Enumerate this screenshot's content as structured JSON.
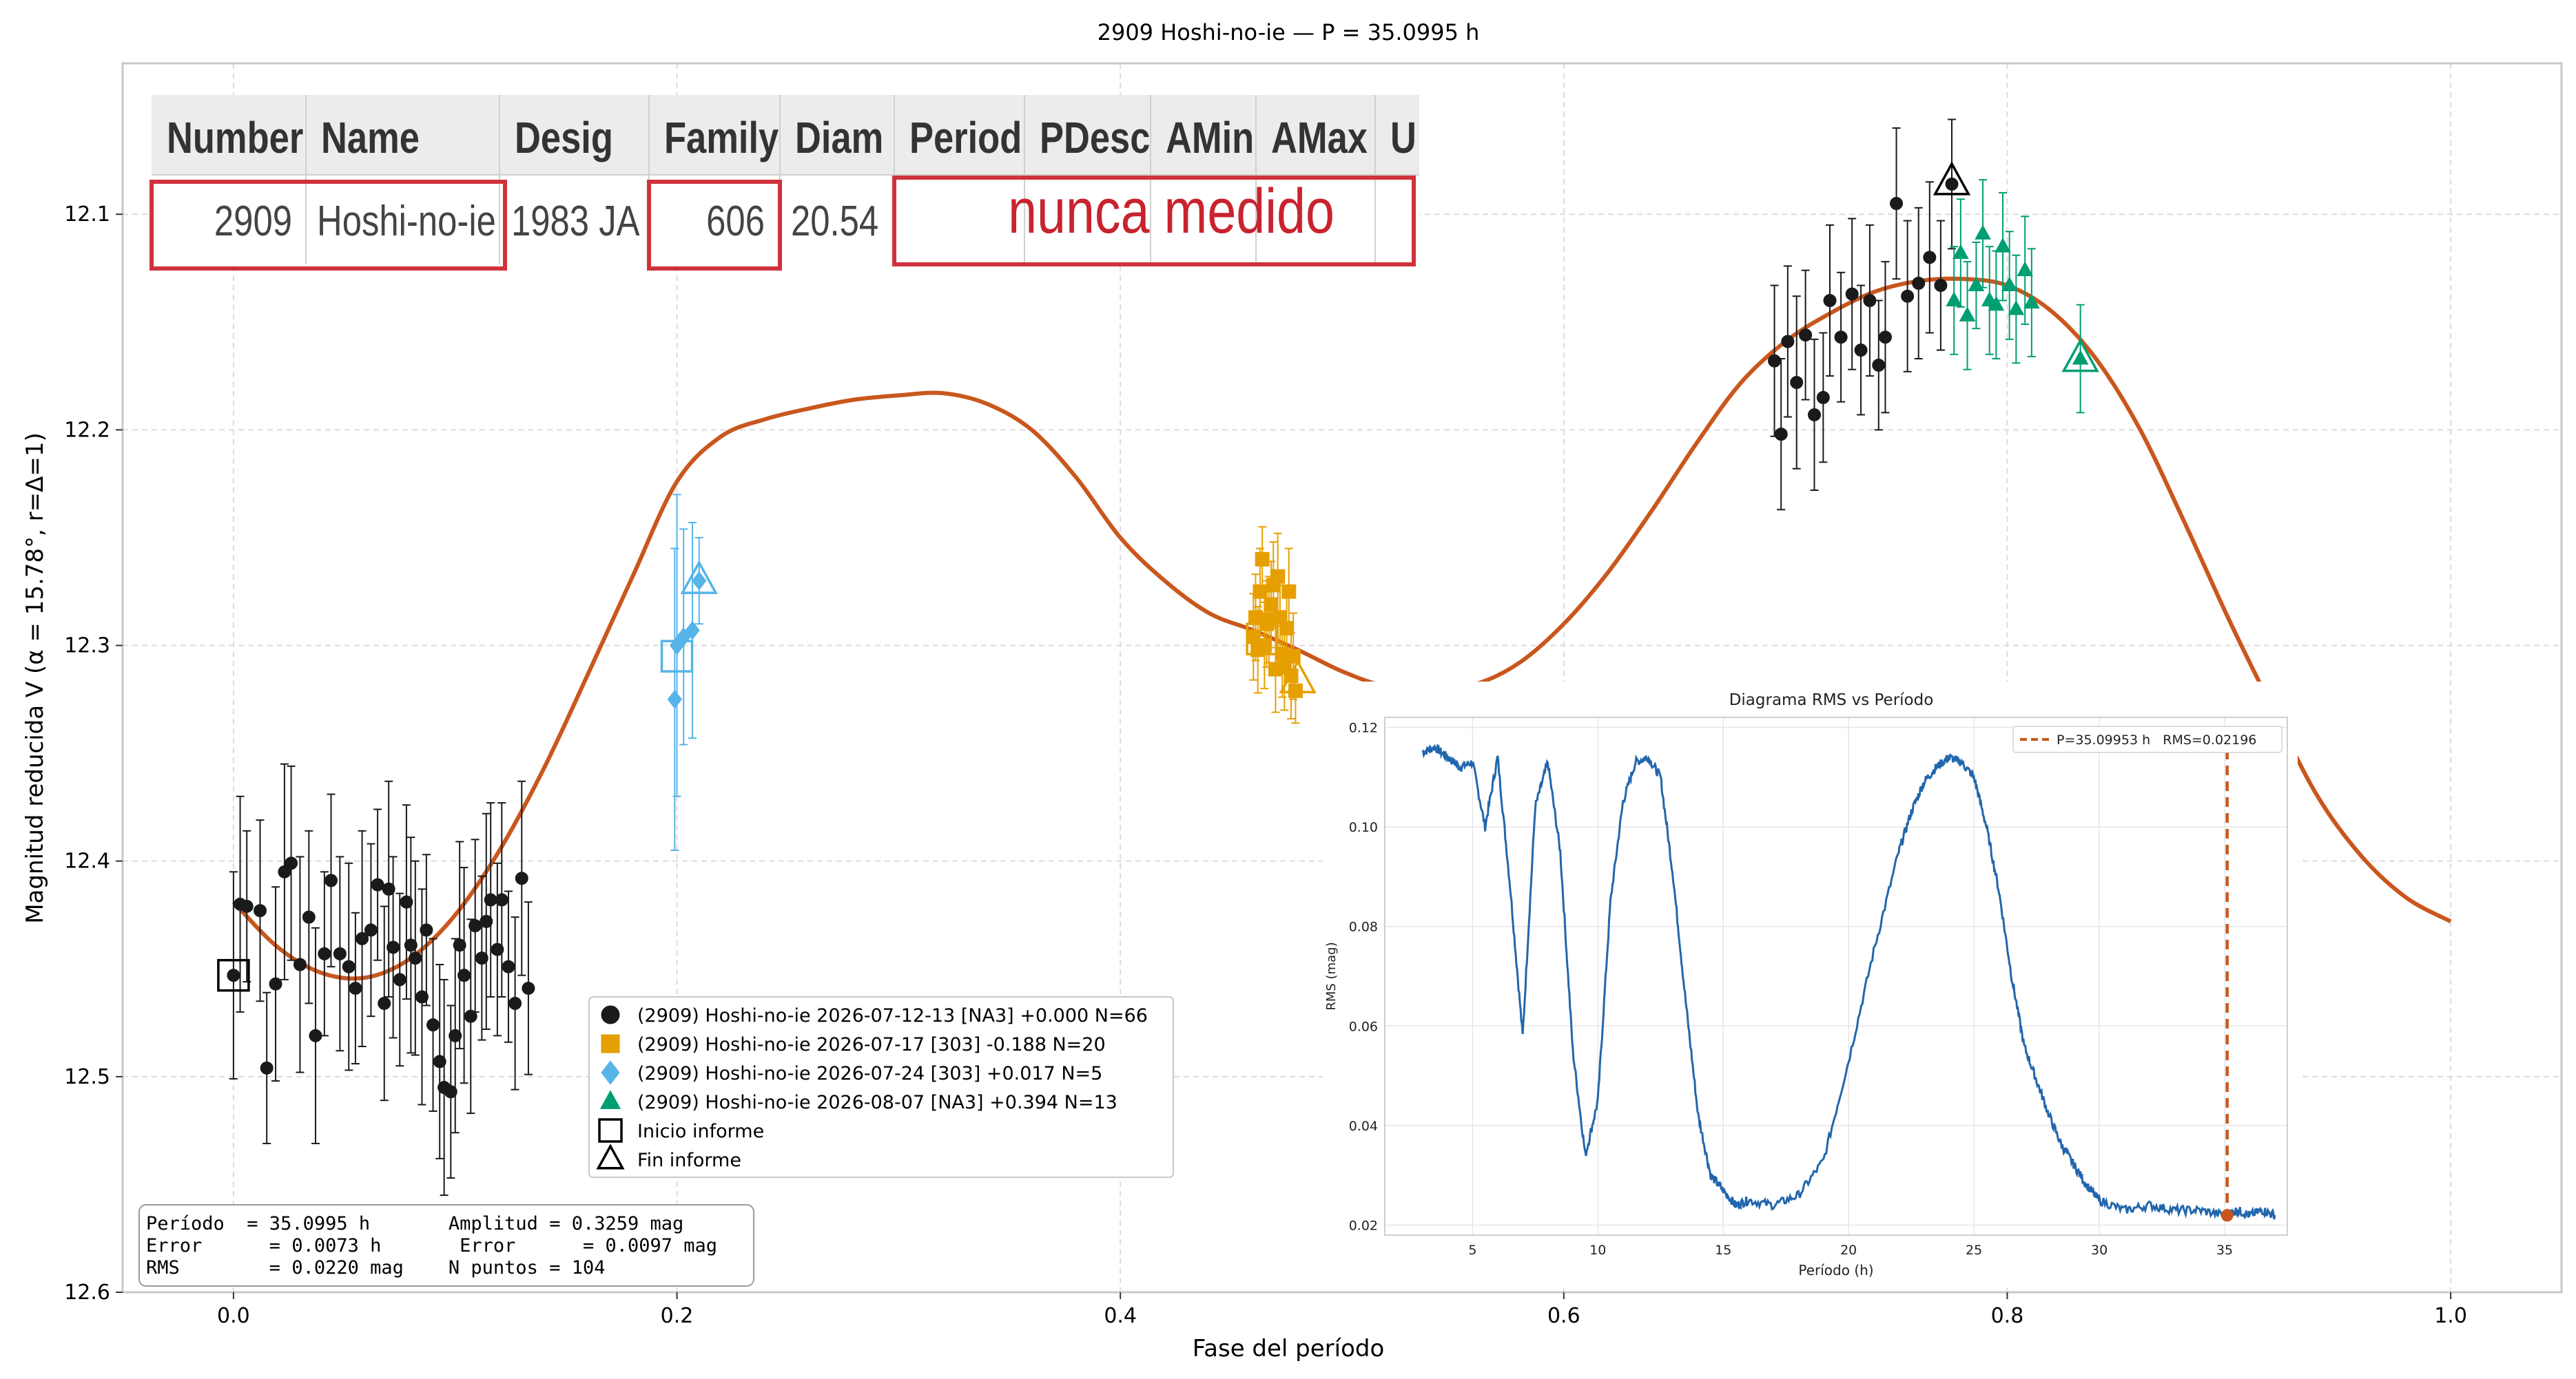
{
  "chart_data": [
    {
      "type": "scatter",
      "title": "2909 Hoshi-no-ie — P = 35.0995 h",
      "xlabel": "Fase del período",
      "ylabel": "Magnitud reducida V  (α = 15.78°, r=Δ=1)",
      "xlim": [
        -0.05,
        1.05
      ],
      "ylim": [
        12.6,
        12.03
      ],
      "y_inverted": true,
      "x_ticks": [
        "0.0",
        "0.2",
        "0.4",
        "0.6",
        "0.8",
        "1.0"
      ],
      "x_tick_values": [
        0.0,
        0.2,
        0.4,
        0.6,
        0.8,
        1.0
      ],
      "y_ticks": [
        "12.1",
        "12.2",
        "12.3",
        "12.4",
        "12.5",
        "12.6"
      ],
      "y_tick_values": [
        12.1,
        12.2,
        12.3,
        12.4,
        12.5,
        12.6
      ],
      "grid": true,
      "legend_position": "lower-center",
      "fit_curve": {
        "color": "#c9571d",
        "x": [
          0.0,
          0.02,
          0.04,
          0.06,
          0.08,
          0.1,
          0.12,
          0.14,
          0.16,
          0.18,
          0.2,
          0.22,
          0.24,
          0.26,
          0.28,
          0.3,
          0.32,
          0.34,
          0.36,
          0.38,
          0.4,
          0.42,
          0.44,
          0.46,
          0.48,
          0.5,
          0.52,
          0.54,
          0.56,
          0.58,
          0.6,
          0.62,
          0.64,
          0.66,
          0.68,
          0.7,
          0.72,
          0.74,
          0.76,
          0.78,
          0.8,
          0.82,
          0.84,
          0.86,
          0.88,
          0.9,
          0.92,
          0.94,
          0.96,
          0.98,
          1.0
        ],
        "y": [
          12.419,
          12.44,
          12.452,
          12.454,
          12.445,
          12.425,
          12.395,
          12.357,
          12.313,
          12.268,
          12.224,
          12.203,
          12.195,
          12.19,
          12.186,
          12.184,
          12.183,
          12.188,
          12.2,
          12.222,
          12.25,
          12.27,
          12.285,
          12.293,
          12.302,
          12.312,
          12.319,
          12.32,
          12.318,
          12.308,
          12.29,
          12.266,
          12.237,
          12.206,
          12.178,
          12.159,
          12.146,
          12.136,
          12.131,
          12.13,
          12.133,
          12.145,
          12.167,
          12.2,
          12.243,
          12.288,
          12.33,
          12.37,
          12.398,
          12.417,
          12.428
        ]
      },
      "series": [
        {
          "name": "(2909) Hoshi-no-ie 2026-07-12-13 [NA3] +0.000 N=66",
          "marker": "circle",
          "color": "#1a1a1a",
          "points": [
            [
              0.0,
              12.453,
              0.048
            ],
            [
              0.003,
              12.42,
              0.05
            ],
            [
              0.006,
              12.421,
              0.035
            ],
            [
              0.012,
              12.423,
              0.042
            ],
            [
              0.015,
              12.496,
              0.035
            ],
            [
              0.019,
              12.457,
              0.045
            ],
            [
              0.023,
              12.405,
              0.05
            ],
            [
              0.026,
              12.401,
              0.045
            ],
            [
              0.03,
              12.448,
              0.05
            ],
            [
              0.034,
              12.426,
              0.04
            ],
            [
              0.037,
              12.481,
              0.05
            ],
            [
              0.041,
              12.443,
              0.038
            ],
            [
              0.044,
              12.409,
              0.04
            ],
            [
              0.048,
              12.443,
              0.045
            ],
            [
              0.052,
              12.449,
              0.048
            ],
            [
              0.055,
              12.459,
              0.035
            ],
            [
              0.058,
              12.436,
              0.05
            ],
            [
              0.062,
              12.432,
              0.04
            ],
            [
              0.065,
              12.411,
              0.035
            ],
            [
              0.068,
              12.466,
              0.045
            ],
            [
              0.07,
              12.413,
              0.05
            ],
            [
              0.072,
              12.44,
              0.042
            ],
            [
              0.075,
              12.455,
              0.04
            ],
            [
              0.078,
              12.419,
              0.045
            ],
            [
              0.08,
              12.439,
              0.05
            ],
            [
              0.082,
              12.445,
              0.045
            ],
            [
              0.085,
              12.463,
              0.05
            ],
            [
              0.087,
              12.432,
              0.035
            ],
            [
              0.09,
              12.476,
              0.04
            ],
            [
              0.093,
              12.493,
              0.045
            ],
            [
              0.095,
              12.505,
              0.05
            ],
            [
              0.098,
              12.507,
              0.04
            ],
            [
              0.1,
              12.481,
              0.045
            ],
            [
              0.102,
              12.439,
              0.048
            ],
            [
              0.104,
              12.453,
              0.05
            ],
            [
              0.107,
              12.472,
              0.045
            ],
            [
              0.109,
              12.43,
              0.04
            ],
            [
              0.112,
              12.445,
              0.038
            ],
            [
              0.114,
              12.428,
              0.05
            ],
            [
              0.116,
              12.418,
              0.045
            ],
            [
              0.119,
              12.441,
              0.04
            ],
            [
              0.121,
              12.418,
              0.045
            ],
            [
              0.124,
              12.449,
              0.035
            ],
            [
              0.127,
              12.466,
              0.04
            ],
            [
              0.13,
              12.408,
              0.045
            ],
            [
              0.133,
              12.459,
              0.04
            ],
            [
              0.695,
              12.168,
              0.035
            ],
            [
              0.698,
              12.202,
              0.035
            ],
            [
              0.701,
              12.159,
              0.035
            ],
            [
              0.705,
              12.178,
              0.04
            ],
            [
              0.709,
              12.156,
              0.03
            ],
            [
              0.713,
              12.193,
              0.035
            ],
            [
              0.717,
              12.185,
              0.03
            ],
            [
              0.72,
              12.14,
              0.035
            ],
            [
              0.725,
              12.157,
              0.03
            ],
            [
              0.73,
              12.137,
              0.035
            ],
            [
              0.734,
              12.163,
              0.03
            ],
            [
              0.738,
              12.14,
              0.035
            ],
            [
              0.742,
              12.17,
              0.03
            ],
            [
              0.745,
              12.157,
              0.035
            ],
            [
              0.75,
              12.095,
              0.035
            ],
            [
              0.755,
              12.138,
              0.035
            ],
            [
              0.76,
              12.132,
              0.035
            ],
            [
              0.765,
              12.12,
              0.035
            ],
            [
              0.77,
              12.133,
              0.03
            ],
            [
              0.775,
              12.086,
              0.03
            ]
          ]
        },
        {
          "name": "(2909) Hoshi-no-ie 2026-07-17 [303] -0.188 N=20",
          "marker": "square",
          "color": "#e69f00",
          "points": [
            [
              0.46,
              12.296,
              0.02
            ],
            [
              0.461,
              12.287,
              0.02
            ],
            [
              0.462,
              12.302,
              0.02
            ],
            [
              0.463,
              12.275,
              0.02
            ],
            [
              0.464,
              12.26,
              0.015
            ],
            [
              0.465,
              12.3,
              0.02
            ],
            [
              0.466,
              12.29,
              0.02
            ],
            [
              0.467,
              12.288,
              0.02
            ],
            [
              0.468,
              12.281,
              0.02
            ],
            [
              0.469,
              12.272,
              0.02
            ],
            [
              0.47,
              12.311,
              0.02
            ],
            [
              0.471,
              12.268,
              0.02
            ],
            [
              0.472,
              12.287,
              0.015
            ],
            [
              0.473,
              12.304,
              0.02
            ],
            [
              0.474,
              12.31,
              0.02
            ],
            [
              0.475,
              12.292,
              0.02
            ],
            [
              0.476,
              12.275,
              0.02
            ],
            [
              0.477,
              12.314,
              0.02
            ],
            [
              0.478,
              12.305,
              0.02
            ],
            [
              0.479,
              12.321,
              0.015
            ]
          ]
        },
        {
          "name": "(2909) Hoshi-no-ie 2026-07-24 [303] +0.017 N=5",
          "marker": "diamond",
          "color": "#56b4e9",
          "points": [
            [
              0.199,
              12.325,
              0.07
            ],
            [
              0.2,
              12.3,
              0.07
            ],
            [
              0.203,
              12.296,
              0.05
            ],
            [
              0.207,
              12.293,
              0.05
            ],
            [
              0.21,
              12.27,
              0.02
            ]
          ]
        },
        {
          "name": "(2909) Hoshi-no-ie 2026-08-07 [NA3] +0.394 N=13",
          "marker": "triangle",
          "color": "#009e73",
          "points": [
            [
              0.776,
              12.14,
              0.025
            ],
            [
              0.779,
              12.118,
              0.025
            ],
            [
              0.782,
              12.147,
              0.025
            ],
            [
              0.786,
              12.133,
              0.02
            ],
            [
              0.789,
              12.109,
              0.025
            ],
            [
              0.792,
              12.14,
              0.025
            ],
            [
              0.795,
              12.142,
              0.025
            ],
            [
              0.798,
              12.115,
              0.025
            ],
            [
              0.801,
              12.133,
              0.025
            ],
            [
              0.804,
              12.144,
              0.025
            ],
            [
              0.808,
              12.126,
              0.025
            ],
            [
              0.811,
              12.141,
              0.025
            ],
            [
              0.833,
              12.167,
              0.025
            ]
          ]
        }
      ],
      "report_markers": [
        {
          "label": "Inicio informe",
          "x": 0.0,
          "y": 12.453,
          "marker": "open-square",
          "color": "#000000"
        },
        {
          "label": "Inicio informe",
          "x": 0.2,
          "y": 12.305,
          "marker": "open-square",
          "color": "#56b4e9"
        },
        {
          "label": "Inicio informe",
          "x": 0.464,
          "y": 12.297,
          "marker": "open-square",
          "color": "#e69f00"
        },
        {
          "label": "Fin informe",
          "x": 0.775,
          "y": 12.085,
          "marker": "open-triangle",
          "color": "#000000"
        },
        {
          "label": "Fin informe",
          "x": 0.21,
          "y": 12.27,
          "marker": "open-triangle",
          "color": "#56b4e9"
        },
        {
          "label": "Fin informe",
          "x": 0.48,
          "y": 12.316,
          "marker": "open-triangle",
          "color": "#e69f00"
        },
        {
          "label": "Fin informe",
          "x": 0.833,
          "y": 12.167,
          "marker": "open-triangle",
          "color": "#009e73"
        }
      ],
      "legend": [
        {
          "label": "(2909) Hoshi-no-ie 2026-07-12-13 [NA3] +0.000 N=66",
          "marker": "circle",
          "color": "#1a1a1a"
        },
        {
          "label": "(2909) Hoshi-no-ie 2026-07-17 [303] -0.188 N=20",
          "marker": "square",
          "color": "#e69f00"
        },
        {
          "label": "(2909) Hoshi-no-ie 2026-07-24 [303] +0.017 N=5",
          "marker": "diamond",
          "color": "#56b4e9"
        },
        {
          "label": "(2909) Hoshi-no-ie 2026-08-07 [NA3] +0.394 N=13",
          "marker": "triangle",
          "color": "#009e73"
        },
        {
          "label": "Inicio informe",
          "marker": "open-square",
          "color": "#000000"
        },
        {
          "label": "Fin informe",
          "marker": "open-triangle",
          "color": "#000000"
        }
      ],
      "stats_box": [
        "Período  = 35.0995 h       Amplitud = 0.3259 mag",
        "Error      = 0.0073 h       Error      = 0.0097 mag",
        "RMS        = 0.0220 mag    N puntos = 104"
      ]
    },
    {
      "type": "line",
      "title": "Diagrama RMS vs Período",
      "xlabel": "Período (h)",
      "ylabel": "RMS (mag)",
      "xlim": [
        1.5,
        37.5
      ],
      "ylim": [
        0.018,
        0.122
      ],
      "x_ticks": [
        "5",
        "10",
        "15",
        "20",
        "25",
        "30",
        "35"
      ],
      "x_tick_values": [
        5,
        10,
        15,
        20,
        25,
        30,
        35
      ],
      "y_ticks": [
        "0.02",
        "0.04",
        "0.06",
        "0.08",
        "0.10",
        "0.12"
      ],
      "y_tick_values": [
        0.02,
        0.04,
        0.06,
        0.08,
        0.1,
        0.12
      ],
      "grid": true,
      "legend_position": "top-right",
      "legend": [
        {
          "label": "P=35.09953 h   RMS=0.02196",
          "style": "dashed",
          "color": "#c9571d"
        }
      ],
      "series": [
        {
          "color": "#2166ac",
          "x": [
            3.0,
            3.5,
            4.0,
            4.5,
            5.0,
            5.5,
            6.0,
            6.5,
            7.0,
            7.5,
            8.0,
            8.5,
            9.0,
            9.5,
            10.0,
            10.5,
            11.0,
            11.5,
            12.0,
            12.5,
            13.0,
            13.5,
            14.0,
            14.5,
            15.0,
            15.5,
            16.0,
            17.0,
            18.0,
            19.0,
            20.0,
            21.0,
            22.0,
            22.5,
            23.0,
            23.5,
            24.0,
            24.5,
            25.0,
            25.5,
            26.0,
            26.5,
            27.0,
            27.5,
            28.0,
            28.5,
            29.0,
            29.5,
            30.0,
            31.0,
            32.0,
            33.0,
            34.0,
            35.0,
            35.5,
            36.0,
            36.5,
            37.0
          ],
          "y": [
            0.115,
            0.116,
            0.114,
            0.112,
            0.113,
            0.1,
            0.114,
            0.088,
            0.058,
            0.104,
            0.113,
            0.095,
            0.055,
            0.034,
            0.045,
            0.085,
            0.105,
            0.113,
            0.114,
            0.11,
            0.09,
            0.065,
            0.042,
            0.03,
            0.027,
            0.024,
            0.025,
            0.024,
            0.026,
            0.033,
            0.053,
            0.075,
            0.095,
            0.103,
            0.109,
            0.112,
            0.114,
            0.113,
            0.11,
            0.1,
            0.087,
            0.07,
            0.056,
            0.049,
            0.042,
            0.036,
            0.032,
            0.028,
            0.025,
            0.023,
            0.024,
            0.023,
            0.023,
            0.022,
            0.023,
            0.022,
            0.023,
            0.022
          ]
        }
      ],
      "best_period": {
        "x": 35.09953,
        "y": 0.02196
      }
    },
    {
      "type": "table",
      "columns": [
        "Number",
        "Name",
        "Desig",
        "Family",
        "Diam",
        "Period",
        "PDesc",
        "AMin",
        "AMax",
        "U"
      ],
      "rows": [
        [
          "2909",
          "Hoshi-no-ie",
          "1983 JA",
          "606",
          "20.54",
          "nunca medido"
        ]
      ],
      "highlight_color": "#d0323c"
    }
  ]
}
